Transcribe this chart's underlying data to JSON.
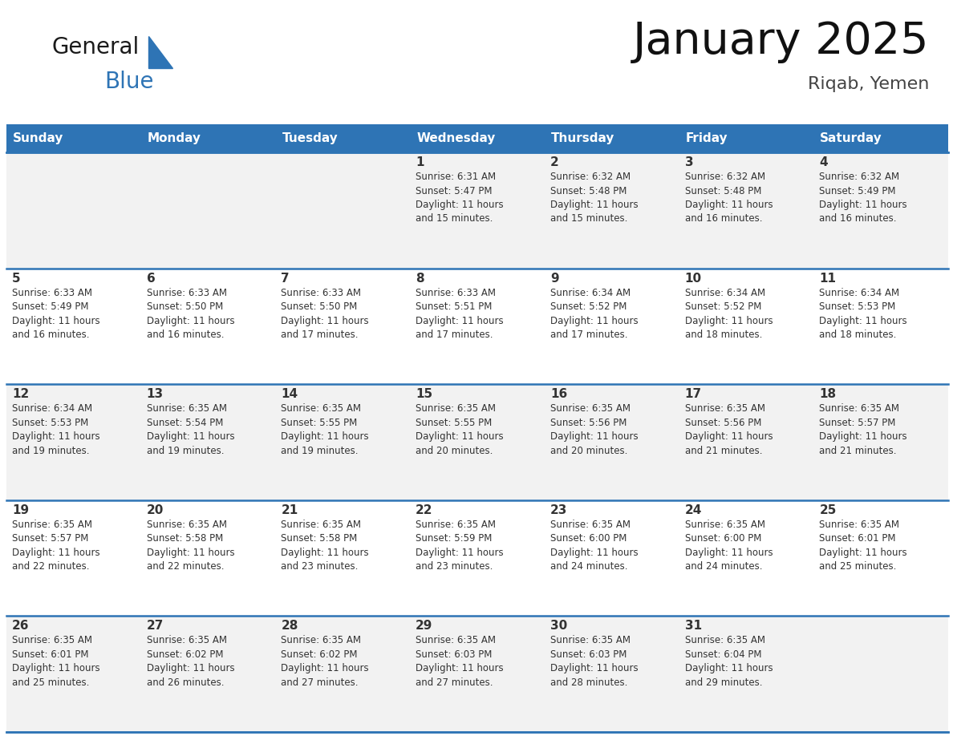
{
  "title": "January 2025",
  "subtitle": "Riqab, Yemen",
  "days_of_week": [
    "Sunday",
    "Monday",
    "Tuesday",
    "Wednesday",
    "Thursday",
    "Friday",
    "Saturday"
  ],
  "header_bg": "#2E74B5",
  "header_text": "#FFFFFF",
  "row_bg_even": "#F2F2F2",
  "row_bg_odd": "#FFFFFF",
  "cell_text": "#333333",
  "border_color": "#2E74B5",
  "logo_general_color": "#1a1a1a",
  "logo_blue_color": "#2E74B5",
  "calendar_data": [
    [
      "",
      "",
      "",
      "1\nSunrise: 6:31 AM\nSunset: 5:47 PM\nDaylight: 11 hours\nand 15 minutes.",
      "2\nSunrise: 6:32 AM\nSunset: 5:48 PM\nDaylight: 11 hours\nand 15 minutes.",
      "3\nSunrise: 6:32 AM\nSunset: 5:48 PM\nDaylight: 11 hours\nand 16 minutes.",
      "4\nSunrise: 6:32 AM\nSunset: 5:49 PM\nDaylight: 11 hours\nand 16 minutes."
    ],
    [
      "5\nSunrise: 6:33 AM\nSunset: 5:49 PM\nDaylight: 11 hours\nand 16 minutes.",
      "6\nSunrise: 6:33 AM\nSunset: 5:50 PM\nDaylight: 11 hours\nand 16 minutes.",
      "7\nSunrise: 6:33 AM\nSunset: 5:50 PM\nDaylight: 11 hours\nand 17 minutes.",
      "8\nSunrise: 6:33 AM\nSunset: 5:51 PM\nDaylight: 11 hours\nand 17 minutes.",
      "9\nSunrise: 6:34 AM\nSunset: 5:52 PM\nDaylight: 11 hours\nand 17 minutes.",
      "10\nSunrise: 6:34 AM\nSunset: 5:52 PM\nDaylight: 11 hours\nand 18 minutes.",
      "11\nSunrise: 6:34 AM\nSunset: 5:53 PM\nDaylight: 11 hours\nand 18 minutes."
    ],
    [
      "12\nSunrise: 6:34 AM\nSunset: 5:53 PM\nDaylight: 11 hours\nand 19 minutes.",
      "13\nSunrise: 6:35 AM\nSunset: 5:54 PM\nDaylight: 11 hours\nand 19 minutes.",
      "14\nSunrise: 6:35 AM\nSunset: 5:55 PM\nDaylight: 11 hours\nand 19 minutes.",
      "15\nSunrise: 6:35 AM\nSunset: 5:55 PM\nDaylight: 11 hours\nand 20 minutes.",
      "16\nSunrise: 6:35 AM\nSunset: 5:56 PM\nDaylight: 11 hours\nand 20 minutes.",
      "17\nSunrise: 6:35 AM\nSunset: 5:56 PM\nDaylight: 11 hours\nand 21 minutes.",
      "18\nSunrise: 6:35 AM\nSunset: 5:57 PM\nDaylight: 11 hours\nand 21 minutes."
    ],
    [
      "19\nSunrise: 6:35 AM\nSunset: 5:57 PM\nDaylight: 11 hours\nand 22 minutes.",
      "20\nSunrise: 6:35 AM\nSunset: 5:58 PM\nDaylight: 11 hours\nand 22 minutes.",
      "21\nSunrise: 6:35 AM\nSunset: 5:58 PM\nDaylight: 11 hours\nand 23 minutes.",
      "22\nSunrise: 6:35 AM\nSunset: 5:59 PM\nDaylight: 11 hours\nand 23 minutes.",
      "23\nSunrise: 6:35 AM\nSunset: 6:00 PM\nDaylight: 11 hours\nand 24 minutes.",
      "24\nSunrise: 6:35 AM\nSunset: 6:00 PM\nDaylight: 11 hours\nand 24 minutes.",
      "25\nSunrise: 6:35 AM\nSunset: 6:01 PM\nDaylight: 11 hours\nand 25 minutes."
    ],
    [
      "26\nSunrise: 6:35 AM\nSunset: 6:01 PM\nDaylight: 11 hours\nand 25 minutes.",
      "27\nSunrise: 6:35 AM\nSunset: 6:02 PM\nDaylight: 11 hours\nand 26 minutes.",
      "28\nSunrise: 6:35 AM\nSunset: 6:02 PM\nDaylight: 11 hours\nand 27 minutes.",
      "29\nSunrise: 6:35 AM\nSunset: 6:03 PM\nDaylight: 11 hours\nand 27 minutes.",
      "30\nSunrise: 6:35 AM\nSunset: 6:03 PM\nDaylight: 11 hours\nand 28 minutes.",
      "31\nSunrise: 6:35 AM\nSunset: 6:04 PM\nDaylight: 11 hours\nand 29 minutes.",
      ""
    ]
  ]
}
